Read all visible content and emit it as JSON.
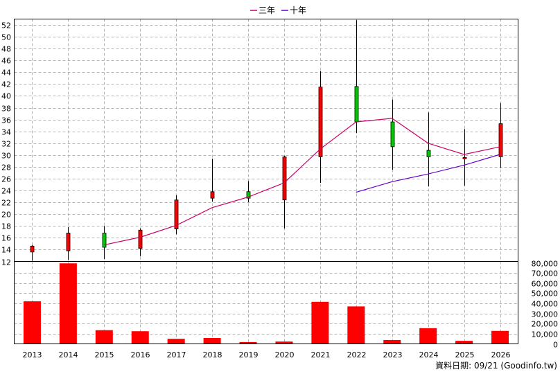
{
  "legend": [
    {
      "name": "三年",
      "color": "#cc0066"
    },
    {
      "name": "十年",
      "color": "#6600cc"
    }
  ],
  "source_label": "資料日期: 09/21  (Goodinfo.tw)",
  "colors": {
    "up": "#ff0000",
    "down": "#00cc00",
    "volume": "#ff0000",
    "wick": "#000000"
  },
  "chart_data": {
    "type": "bar",
    "categories": [
      "2013",
      "2014",
      "2015",
      "2016",
      "2017",
      "2018",
      "2019",
      "2020",
      "2021",
      "2022",
      "2023",
      "2024",
      "2025",
      "2026"
    ],
    "price_axis": {
      "ylim": [
        12,
        53
      ],
      "ticks": [
        12,
        14,
        16,
        18,
        20,
        22,
        24,
        26,
        28,
        30,
        32,
        34,
        36,
        38,
        40,
        42,
        44,
        46,
        48,
        50,
        52
      ]
    },
    "volume_axis": {
      "ylim": [
        0,
        80000
      ],
      "ticks": [
        "0",
        "10,000",
        "20,000",
        "30,000",
        "40,000",
        "50,000",
        "60,000",
        "70,000",
        "80,000"
      ],
      "tick_values": [
        0,
        10000,
        20000,
        30000,
        40000,
        50000,
        60000,
        70000,
        80000
      ]
    },
    "candles": [
      {
        "year": "2013",
        "open": 13.6,
        "close": 14.6,
        "high": 14.8,
        "low": 12.1
      },
      {
        "year": "2014",
        "open": 13.8,
        "close": 16.8,
        "high": 17.8,
        "low": 12.2
      },
      {
        "year": "2015",
        "open": 16.8,
        "close": 14.4,
        "high": 18.0,
        "low": 12.4
      },
      {
        "year": "2016",
        "open": 14.2,
        "close": 17.3,
        "high": 17.6,
        "low": 12.9
      },
      {
        "year": "2017",
        "open": 17.5,
        "close": 22.4,
        "high": 23.2,
        "low": 16.6
      },
      {
        "year": "2018",
        "open": 22.7,
        "close": 23.8,
        "high": 29.4,
        "low": 22.1
      },
      {
        "year": "2019",
        "open": 23.8,
        "close": 22.7,
        "high": 25.6,
        "low": 22.0
      },
      {
        "year": "2020",
        "open": 22.4,
        "close": 29.7,
        "high": 29.9,
        "low": 17.6
      },
      {
        "year": "2021",
        "open": 29.7,
        "close": 41.5,
        "high": 44.2,
        "low": 25.3
      },
      {
        "year": "2022",
        "open": 41.6,
        "close": 35.6,
        "high": 52.8,
        "low": 33.7
      },
      {
        "year": "2023",
        "open": 35.6,
        "close": 31.4,
        "high": 39.4,
        "low": 27.5
      },
      {
        "year": "2024",
        "open": 30.8,
        "close": 29.7,
        "high": 37.2,
        "low": 24.7
      },
      {
        "year": "2025",
        "open": 29.5,
        "close": 29.6,
        "high": 34.4,
        "low": 24.8
      },
      {
        "year": "2026",
        "open": 29.7,
        "close": 35.3,
        "high": 38.8,
        "low": 27.8
      }
    ],
    "series": [
      {
        "name": "三年",
        "values": [
          null,
          null,
          14.8,
          16.1,
          18.1,
          21.1,
          22.9,
          25.3,
          31.0,
          35.6,
          36.2,
          32.0,
          30.1,
          31.4
        ]
      },
      {
        "name": "十年",
        "values": [
          null,
          null,
          null,
          null,
          null,
          null,
          null,
          null,
          null,
          23.7,
          25.5,
          26.8,
          28.3,
          30.1
        ]
      }
    ],
    "volume": [
      42000,
      79500,
      13500,
      12500,
      5000,
      5800,
      1800,
      2300,
      41500,
      37000,
      3800,
      15500,
      3000,
      12800
    ]
  }
}
